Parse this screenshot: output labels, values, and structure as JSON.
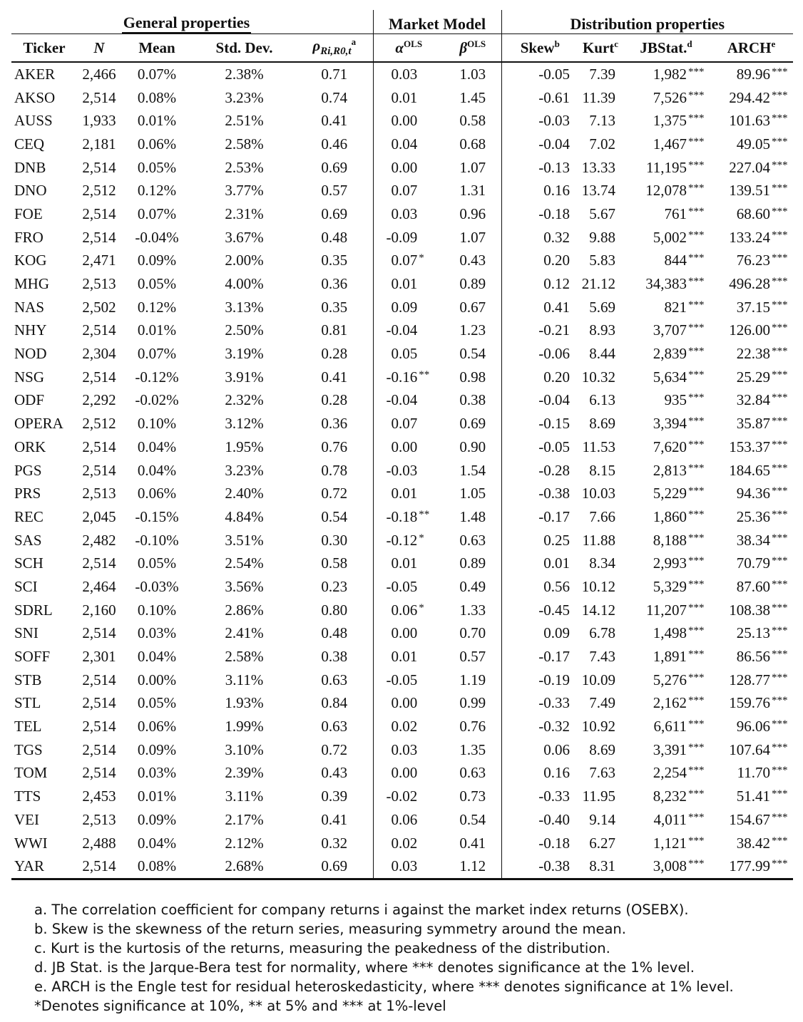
{
  "groups": {
    "general": "General properties",
    "market": "Market Model",
    "distribution": "Distribution properties"
  },
  "headers": {
    "ticker": "Ticker",
    "n": "N",
    "mean": "Mean",
    "sd": "Std. Dev.",
    "rho": "ρ",
    "rho_sub": "Ri,R0,t",
    "rho_sup": "a",
    "alpha": "α",
    "alpha_sup": "OLS",
    "beta": "β",
    "beta_sup": "OLS",
    "skew": "Skew",
    "skew_sup": "b",
    "kurt": "Kurt",
    "kurt_sup": "c",
    "jb": "JBStat.",
    "jb_sup": "d",
    "arch": "ARCH",
    "arch_sup": "e"
  },
  "rows": [
    [
      "AKER",
      "2,466",
      "0.07%",
      "2.38%",
      "0.71",
      "0.03",
      "",
      "1.03",
      "-0.05",
      "7.39",
      "1,982",
      "***",
      "89.96",
      "***"
    ],
    [
      "AKSO",
      "2,514",
      "0.08%",
      "3.23%",
      "0.74",
      "0.01",
      "",
      "1.45",
      "-0.61",
      "11.39",
      "7,526",
      "***",
      "294.42",
      "***"
    ],
    [
      "AUSS",
      "1,933",
      "0.01%",
      "2.51%",
      "0.41",
      "0.00",
      "",
      "0.58",
      "-0.03",
      "7.13",
      "1,375",
      "***",
      "101.63",
      "***"
    ],
    [
      "CEQ",
      "2,181",
      "0.06%",
      "2.58%",
      "0.46",
      "0.04",
      "",
      "0.68",
      "-0.04",
      "7.02",
      "1,467",
      "***",
      "49.05",
      "***"
    ],
    [
      "DNB",
      "2,514",
      "0.05%",
      "2.53%",
      "0.69",
      "0.00",
      "",
      "1.07",
      "-0.13",
      "13.33",
      "11,195",
      "***",
      "227.04",
      "***"
    ],
    [
      "DNO",
      "2,512",
      "0.12%",
      "3.77%",
      "0.57",
      "0.07",
      "",
      "1.31",
      "0.16",
      "13.74",
      "12,078",
      "***",
      "139.51",
      "***"
    ],
    [
      "FOE",
      "2,514",
      "0.07%",
      "2.31%",
      "0.69",
      "0.03",
      "",
      "0.96",
      "-0.18",
      "5.67",
      "761",
      "***",
      "68.60",
      "***"
    ],
    [
      "FRO",
      "2,514",
      "-0.04%",
      "3.67%",
      "0.48",
      "-0.09",
      "",
      "1.07",
      "0.32",
      "9.88",
      "5,002",
      "***",
      "133.24",
      "***"
    ],
    [
      "KOG",
      "2,471",
      "0.09%",
      "2.00%",
      "0.35",
      "0.07",
      "*",
      "0.43",
      "0.20",
      "5.83",
      "844",
      "***",
      "76.23",
      "***"
    ],
    [
      "MHG",
      "2,513",
      "0.05%",
      "4.00%",
      "0.36",
      "0.01",
      "",
      "0.89",
      "0.12",
      "21.12",
      "34,383",
      "***",
      "496.28",
      "***"
    ],
    [
      "NAS",
      "2,502",
      "0.12%",
      "3.13%",
      "0.35",
      "0.09",
      "",
      "0.67",
      "0.41",
      "5.69",
      "821",
      "***",
      "37.15",
      "***"
    ],
    [
      "NHY",
      "2,514",
      "0.01%",
      "2.50%",
      "0.81",
      "-0.04",
      "",
      "1.23",
      "-0.21",
      "8.93",
      "3,707",
      "***",
      "126.00",
      "***"
    ],
    [
      "NOD",
      "2,304",
      "0.07%",
      "3.19%",
      "0.28",
      "0.05",
      "",
      "0.54",
      "-0.06",
      "8.44",
      "2,839",
      "***",
      "22.38",
      "***"
    ],
    [
      "NSG",
      "2,514",
      "-0.12%",
      "3.91%",
      "0.41",
      "-0.16",
      "**",
      "0.98",
      "0.20",
      "10.32",
      "5,634",
      "***",
      "25.29",
      "***"
    ],
    [
      "ODF",
      "2,292",
      "-0.02%",
      "2.32%",
      "0.28",
      "-0.04",
      "",
      "0.38",
      "-0.04",
      "6.13",
      "935",
      "***",
      "32.84",
      "***"
    ],
    [
      "OPERA",
      "2,512",
      "0.10%",
      "3.12%",
      "0.36",
      "0.07",
      "",
      "0.69",
      "-0.15",
      "8.69",
      "3,394",
      "***",
      "35.87",
      "***"
    ],
    [
      "ORK",
      "2,514",
      "0.04%",
      "1.95%",
      "0.76",
      "0.00",
      "",
      "0.90",
      "-0.05",
      "11.53",
      "7,620",
      "***",
      "153.37",
      "***"
    ],
    [
      "PGS",
      "2,514",
      "0.04%",
      "3.23%",
      "0.78",
      "-0.03",
      "",
      "1.54",
      "-0.28",
      "8.15",
      "2,813",
      "***",
      "184.65",
      "***"
    ],
    [
      "PRS",
      "2,513",
      "0.06%",
      "2.40%",
      "0.72",
      "0.01",
      "",
      "1.05",
      "-0.38",
      "10.03",
      "5,229",
      "***",
      "94.36",
      "***"
    ],
    [
      "REC",
      "2,045",
      "-0.15%",
      "4.84%",
      "0.54",
      "-0.18",
      "**",
      "1.48",
      "-0.17",
      "7.66",
      "1,860",
      "***",
      "25.36",
      "***"
    ],
    [
      "SAS",
      "2,482",
      "-0.10%",
      "3.51%",
      "0.30",
      "-0.12",
      "*",
      "0.63",
      "0.25",
      "11.88",
      "8,188",
      "***",
      "38.34",
      "***"
    ],
    [
      "SCH",
      "2,514",
      "0.05%",
      "2.54%",
      "0.58",
      "0.01",
      "",
      "0.89",
      "0.01",
      "8.34",
      "2,993",
      "***",
      "70.79",
      "***"
    ],
    [
      "SCI",
      "2,464",
      "-0.03%",
      "3.56%",
      "0.23",
      "-0.05",
      "",
      "0.49",
      "0.56",
      "10.12",
      "5,329",
      "***",
      "87.60",
      "***"
    ],
    [
      "SDRL",
      "2,160",
      "0.10%",
      "2.86%",
      "0.80",
      "0.06",
      "*",
      "1.33",
      "-0.45",
      "14.12",
      "11,207",
      "***",
      "108.38",
      "***"
    ],
    [
      "SNI",
      "2,514",
      "0.03%",
      "2.41%",
      "0.48",
      "0.00",
      "",
      "0.70",
      "0.09",
      "6.78",
      "1,498",
      "***",
      "25.13",
      "***"
    ],
    [
      "SOFF",
      "2,301",
      "0.04%",
      "2.58%",
      "0.38",
      "0.01",
      "",
      "0.57",
      "-0.17",
      "7.43",
      "1,891",
      "***",
      "86.56",
      "***"
    ],
    [
      "STB",
      "2,514",
      "0.00%",
      "3.11%",
      "0.63",
      "-0.05",
      "",
      "1.19",
      "-0.19",
      "10.09",
      "5,276",
      "***",
      "128.77",
      "***"
    ],
    [
      "STL",
      "2,514",
      "0.05%",
      "1.93%",
      "0.84",
      "0.00",
      "",
      "0.99",
      "-0.33",
      "7.49",
      "2,162",
      "***",
      "159.76",
      "***"
    ],
    [
      "TEL",
      "2,514",
      "0.06%",
      "1.99%",
      "0.63",
      "0.02",
      "",
      "0.76",
      "-0.32",
      "10.92",
      "6,611",
      "***",
      "96.06",
      "***"
    ],
    [
      "TGS",
      "2,514",
      "0.09%",
      "3.10%",
      "0.72",
      "0.03",
      "",
      "1.35",
      "0.06",
      "8.69",
      "3,391",
      "***",
      "107.64",
      "***"
    ],
    [
      "TOM",
      "2,514",
      "0.03%",
      "2.39%",
      "0.43",
      "0.00",
      "",
      "0.63",
      "0.16",
      "7.63",
      "2,254",
      "***",
      "11.70",
      "***"
    ],
    [
      "TTS",
      "2,453",
      "0.01%",
      "3.11%",
      "0.39",
      "-0.02",
      "",
      "0.73",
      "-0.33",
      "11.95",
      "8,232",
      "***",
      "51.41",
      "***"
    ],
    [
      "VEI",
      "2,513",
      "0.09%",
      "2.17%",
      "0.41",
      "0.06",
      "",
      "0.54",
      "-0.40",
      "9.14",
      "4,011",
      "***",
      "154.67",
      "***"
    ],
    [
      "WWI",
      "2,488",
      "0.04%",
      "2.12%",
      "0.32",
      "0.02",
      "",
      "0.41",
      "-0.18",
      "6.27",
      "1,121",
      "***",
      "38.42",
      "***"
    ],
    [
      "YAR",
      "2,514",
      "0.08%",
      "2.68%",
      "0.69",
      "0.03",
      "",
      "1.12",
      "-0.38",
      "8.31",
      "3,008",
      "***",
      "177.99",
      "***"
    ]
  ],
  "notes": [
    "a. The correlation coefficient for company returns i against the market index returns (OSEBX).",
    "b. Skew is the skewness of the return series, measuring symmetry around the mean.",
    "c. Kurt is the kurtosis of the returns, measuring the peakedness of the distribution.",
    "d. JB Stat. is the Jarque-Bera test for normality, where *** denotes significance at the 1% level.",
    "e. ARCH is the Engle test for residual heteroskedasticity, where *** denotes significance at 1% level.",
    "*Denotes significance at 10%, ** at 5% and *** at 1%-level"
  ]
}
